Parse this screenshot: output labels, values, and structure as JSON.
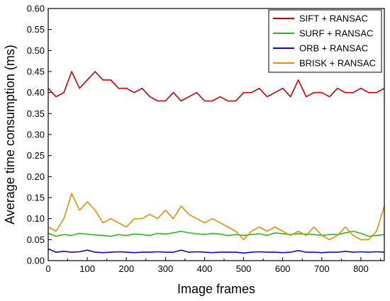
{
  "chart_data": {
    "type": "line",
    "title": "",
    "xlabel": "Image frames",
    "ylabel": "Average time consumption (ms)",
    "xlim": [
      0,
      860
    ],
    "ylim": [
      0.0,
      0.6
    ],
    "x_ticks": [
      0,
      100,
      200,
      300,
      400,
      500,
      600,
      700,
      800
    ],
    "x_tick_labels": [
      "0",
      "100",
      "200",
      "300",
      "400",
      "500",
      "600",
      "700",
      "800"
    ],
    "y_ticks": [
      0.0,
      0.05,
      0.1,
      0.15,
      0.2,
      0.25,
      0.3,
      0.35,
      0.4,
      0.45,
      0.5,
      0.55,
      0.6
    ],
    "y_tick_labels": [
      "0.00",
      "0.05",
      "0.10",
      "0.15",
      "0.20",
      "0.25",
      "0.30",
      "0.35",
      "0.40",
      "0.45",
      "0.50",
      "0.55",
      "0.60"
    ],
    "grid": false,
    "legend_position": "top-right",
    "series": [
      {
        "name": "SIFT + RANSAC",
        "color": "#cc0000",
        "x": [
          0,
          20,
          40,
          60,
          80,
          100,
          120,
          140,
          160,
          180,
          200,
          220,
          240,
          260,
          280,
          300,
          320,
          340,
          360,
          380,
          400,
          420,
          440,
          460,
          480,
          500,
          520,
          540,
          560,
          580,
          600,
          620,
          640,
          660,
          680,
          700,
          720,
          740,
          760,
          780,
          800,
          820,
          840,
          860
        ],
        "y": [
          0.41,
          0.39,
          0.4,
          0.45,
          0.41,
          0.43,
          0.45,
          0.43,
          0.43,
          0.41,
          0.41,
          0.4,
          0.41,
          0.39,
          0.38,
          0.38,
          0.4,
          0.38,
          0.39,
          0.4,
          0.38,
          0.38,
          0.39,
          0.38,
          0.38,
          0.4,
          0.4,
          0.41,
          0.39,
          0.4,
          0.41,
          0.39,
          0.43,
          0.39,
          0.4,
          0.4,
          0.39,
          0.41,
          0.4,
          0.4,
          0.41,
          0.4,
          0.4,
          0.41
        ]
      },
      {
        "name": "SURF + RANSAC",
        "color": "#2dbb1a",
        "x": [
          0,
          20,
          40,
          60,
          80,
          100,
          120,
          140,
          160,
          180,
          200,
          220,
          240,
          260,
          280,
          300,
          320,
          340,
          360,
          380,
          400,
          420,
          440,
          460,
          480,
          500,
          520,
          540,
          560,
          580,
          600,
          620,
          640,
          660,
          680,
          700,
          720,
          740,
          760,
          780,
          800,
          820,
          840,
          860
        ],
        "y": [
          0.065,
          0.058,
          0.062,
          0.06,
          0.065,
          0.063,
          0.061,
          0.06,
          0.058,
          0.062,
          0.06,
          0.063,
          0.062,
          0.06,
          0.065,
          0.063,
          0.066,
          0.07,
          0.066,
          0.064,
          0.062,
          0.065,
          0.063,
          0.06,
          0.062,
          0.06,
          0.062,
          0.064,
          0.06,
          0.066,
          0.064,
          0.062,
          0.064,
          0.063,
          0.062,
          0.06,
          0.062,
          0.062,
          0.066,
          0.07,
          0.065,
          0.058,
          0.06,
          0.062
        ]
      },
      {
        "name": "ORB + RANSAC",
        "color": "#0b0bcc",
        "x": [
          0,
          20,
          40,
          60,
          80,
          100,
          120,
          140,
          160,
          180,
          200,
          220,
          240,
          260,
          280,
          300,
          320,
          340,
          360,
          380,
          400,
          420,
          440,
          460,
          480,
          500,
          520,
          540,
          560,
          580,
          600,
          620,
          640,
          660,
          680,
          700,
          720,
          740,
          760,
          780,
          800,
          820,
          840,
          860
        ],
        "y": [
          0.028,
          0.02,
          0.022,
          0.02,
          0.021,
          0.025,
          0.02,
          0.019,
          0.02,
          0.021,
          0.02,
          0.019,
          0.02,
          0.02,
          0.021,
          0.02,
          0.02,
          0.025,
          0.02,
          0.021,
          0.02,
          0.019,
          0.02,
          0.02,
          0.02,
          0.018,
          0.02,
          0.021,
          0.02,
          0.02,
          0.019,
          0.02,
          0.024,
          0.02,
          0.02,
          0.019,
          0.02,
          0.02,
          0.022,
          0.02,
          0.021,
          0.02,
          0.021,
          0.02
        ]
      },
      {
        "name": "BRISK + RANSAC",
        "color": "#e0900c",
        "x": [
          0,
          20,
          40,
          60,
          80,
          100,
          120,
          140,
          160,
          180,
          200,
          220,
          240,
          260,
          280,
          300,
          320,
          340,
          360,
          380,
          400,
          420,
          440,
          460,
          480,
          500,
          520,
          540,
          560,
          580,
          600,
          620,
          640,
          660,
          680,
          700,
          720,
          740,
          760,
          780,
          800,
          820,
          840,
          860
        ],
        "y": [
          0.08,
          0.07,
          0.1,
          0.16,
          0.12,
          0.14,
          0.12,
          0.09,
          0.1,
          0.09,
          0.08,
          0.1,
          0.1,
          0.11,
          0.1,
          0.12,
          0.1,
          0.13,
          0.11,
          0.1,
          0.09,
          0.1,
          0.09,
          0.08,
          0.07,
          0.05,
          0.07,
          0.08,
          0.07,
          0.08,
          0.07,
          0.06,
          0.07,
          0.06,
          0.08,
          0.06,
          0.05,
          0.06,
          0.08,
          0.06,
          0.05,
          0.05,
          0.07,
          0.13
        ]
      }
    ]
  }
}
